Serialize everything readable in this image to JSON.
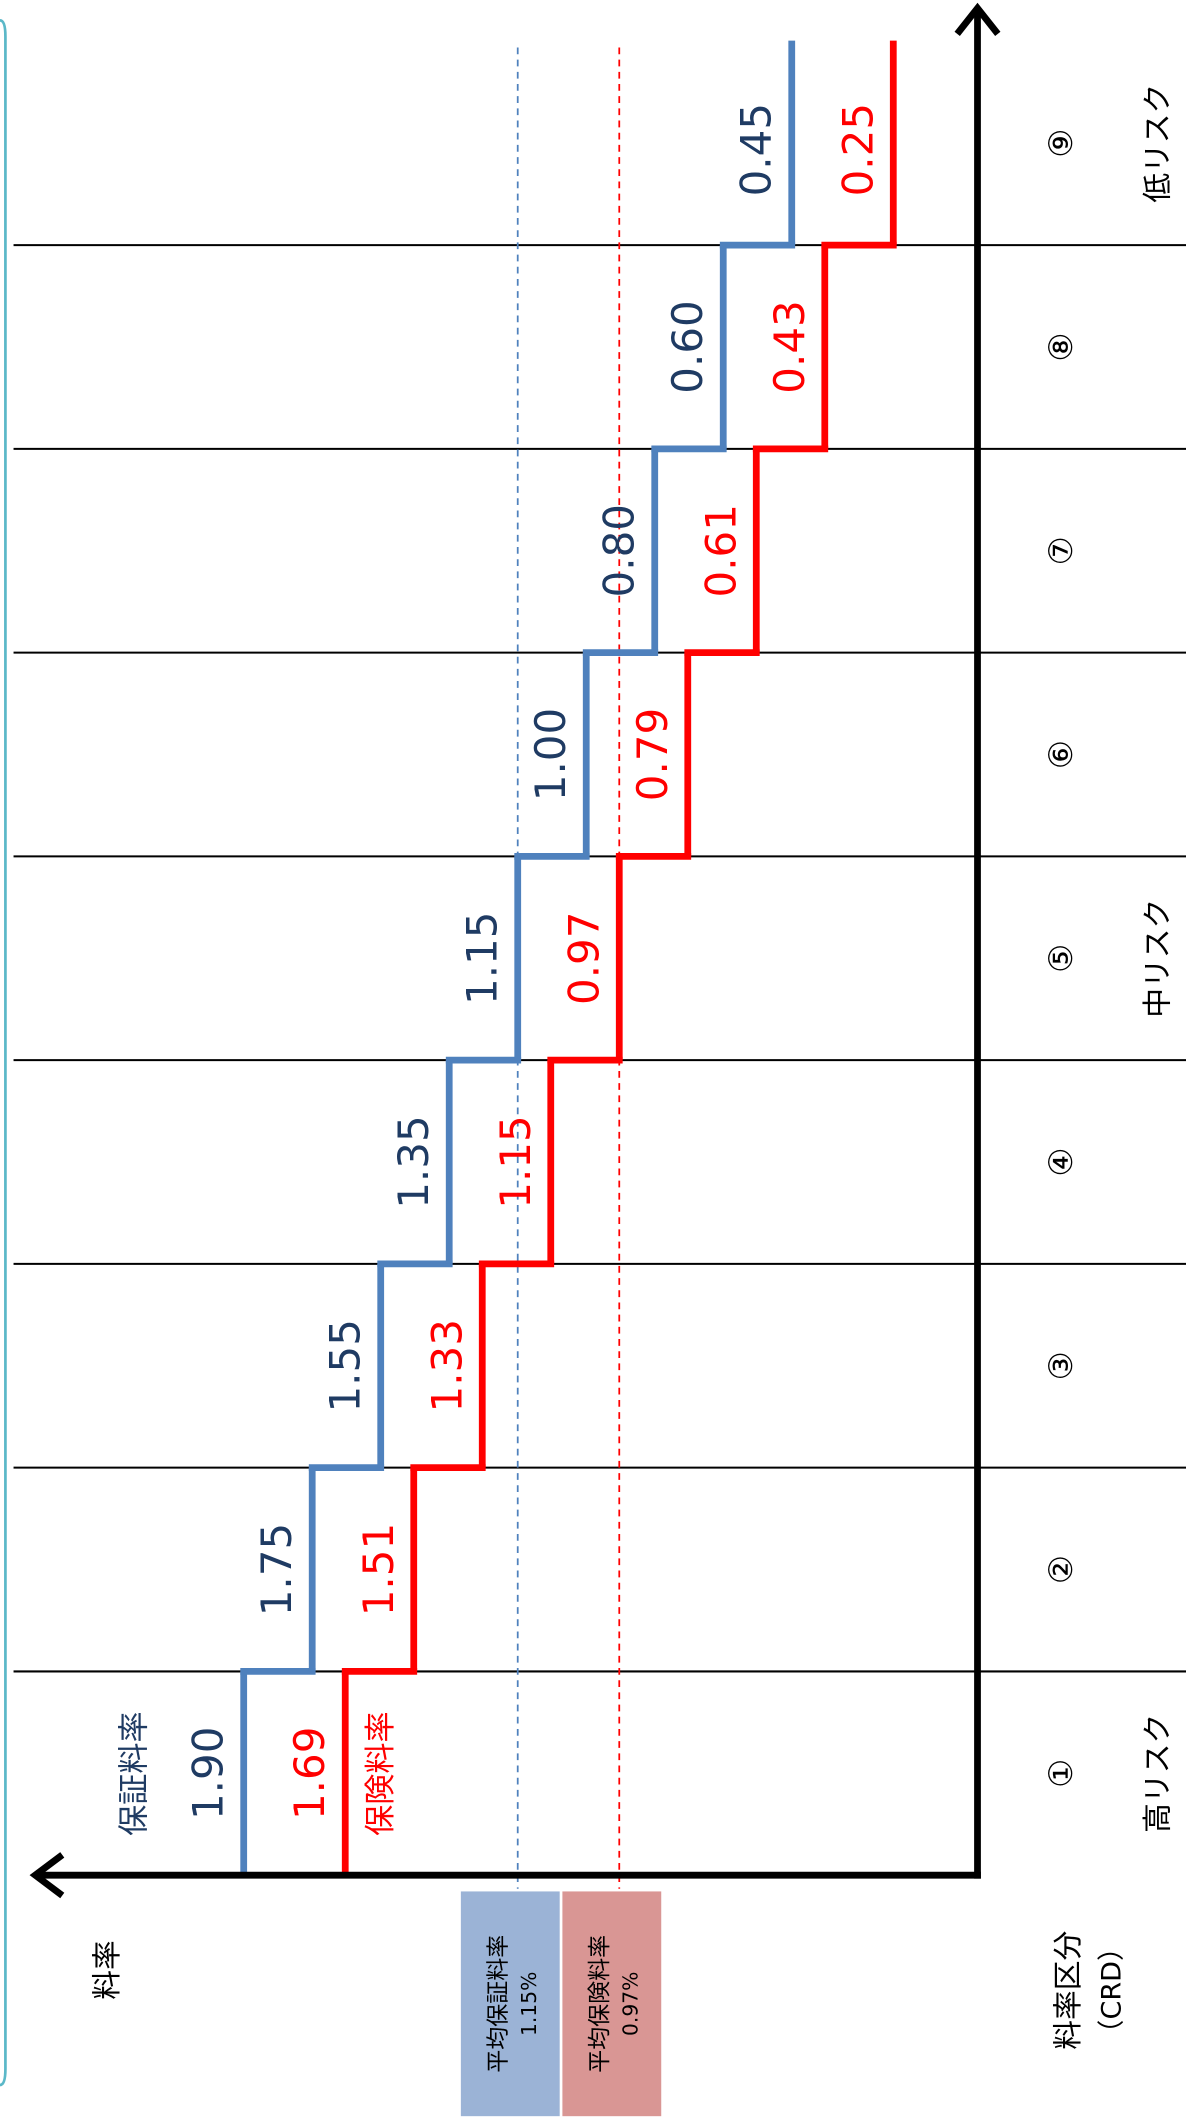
{
  "chart_data": {
    "type": "step",
    "x_label": "料率区分",
    "x_label_sub": "（CRD）",
    "y_label": "料率",
    "categories": [
      "①",
      "②",
      "③",
      "④",
      "⑤",
      "⑥",
      "⑦",
      "⑧",
      "⑨"
    ],
    "risk_labels": [
      "高リスク",
      null,
      null,
      null,
      "中リスク",
      null,
      null,
      null,
      "低リスク"
    ],
    "series": [
      {
        "name": "保証料率",
        "color": "#4f81bd",
        "label_color": "#1f3b63",
        "values": [
          1.9,
          1.75,
          1.55,
          1.35,
          1.15,
          1.0,
          0.8,
          0.6,
          0.45
        ],
        "value_labels": [
          "1.90",
          "1.75",
          "1.55",
          "1.35",
          "1.15",
          "1.00",
          "0.80",
          "0.60",
          "0.45"
        ]
      },
      {
        "name": "保険料率",
        "color": "#ff0000",
        "label_color": "#ff0000",
        "values": [
          1.69,
          1.51,
          1.33,
          1.15,
          0.97,
          0.79,
          0.61,
          0.43,
          0.25
        ],
        "value_labels": [
          "1.69",
          "1.51",
          "1.33",
          "1.15",
          "0.97",
          "0.79",
          "0.61",
          "0.43",
          "0.25"
        ]
      }
    ],
    "averages": [
      {
        "name": "平均保証料率",
        "value": 1.15,
        "label": "1.15%",
        "color": "#4f81bd",
        "box_color": "#9bb3d6"
      },
      {
        "name": "平均保険料率",
        "value": 0.97,
        "label": "0.97%",
        "color": "#ff0000",
        "box_color": "#d99694"
      }
    ]
  }
}
